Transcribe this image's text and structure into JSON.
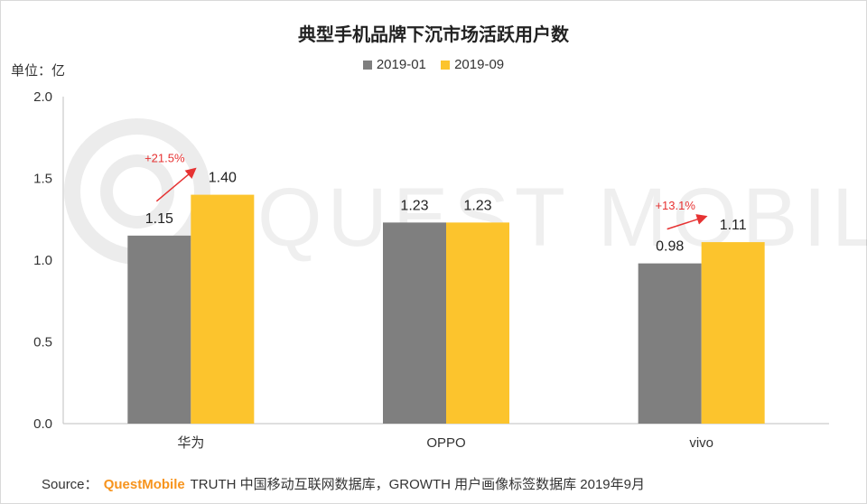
{
  "chart_data": {
    "type": "bar",
    "title": "典型手机品牌下沉市场活跃用户数",
    "unit_label": "单位：亿",
    "categories": [
      "华为",
      "OPPO",
      "vivo"
    ],
    "series": [
      {
        "name": "2019-01",
        "values": [
          1.15,
          1.23,
          0.98
        ],
        "color": "#7f7f7f"
      },
      {
        "name": "2019-09",
        "values": [
          1.4,
          1.23,
          1.11
        ],
        "color": "#fcc42d"
      }
    ],
    "value_labels": [
      [
        "1.15",
        "1.23",
        "0.98"
      ],
      [
        "1.40",
        "1.23",
        "1.11"
      ]
    ],
    "y_ticks": [
      "0.0",
      "0.5",
      "1.0",
      "1.5",
      "2.0"
    ],
    "ylim": [
      0,
      2.0
    ],
    "legend_position": "top-center",
    "annotations": [
      {
        "category_index": 0,
        "text": "+21.5%",
        "color": "#e63232"
      },
      {
        "category_index": 2,
        "text": "+13.1%",
        "color": "#e63232"
      }
    ]
  },
  "watermark": "QUEST MOBILE",
  "source": {
    "prefix": "Source：",
    "brand": "QuestMobile",
    "text": "TRUTH 中国移动互联网数据库，GROWTH 用户画像标签数据库 2019年9月"
  }
}
